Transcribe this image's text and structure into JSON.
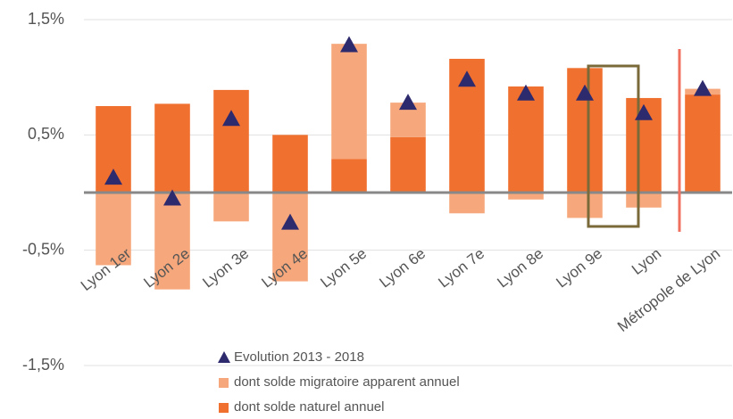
{
  "chart_data": {
    "type": "bar",
    "categories": [
      "Lyon 1er",
      "Lyon 2e",
      "Lyon 3e",
      "Lyon 4e",
      "Lyon 5e",
      "Lyon 6e",
      "Lyon 7e",
      "Lyon 8e",
      "Lyon 9e",
      "Lyon",
      "Métropole de Lyon"
    ],
    "series": [
      {
        "name": "Evolution 2013 - 2018",
        "type": "scatter",
        "color": "#2e2a6e",
        "values": [
          0.13,
          -0.05,
          0.64,
          -0.26,
          1.28,
          0.78,
          0.98,
          0.86,
          0.86,
          0.69,
          0.9
        ]
      },
      {
        "name": "dont solde migratoire apparent annuel",
        "type": "bar",
        "color": "#f6a87c",
        "values": [
          -0.63,
          -0.84,
          -0.25,
          -0.77,
          1.0,
          0.3,
          -0.18,
          -0.06,
          -0.22,
          -0.13,
          0.05
        ]
      },
      {
        "name": "dont solde naturel annuel",
        "type": "bar",
        "color": "#f07030",
        "values": [
          0.75,
          0.77,
          0.89,
          0.5,
          0.29,
          0.48,
          1.16,
          0.92,
          1.08,
          0.82,
          0.85
        ]
      }
    ],
    "ylim": [
      -1.5,
      1.5
    ],
    "yticks": [
      {
        "value": 1.5,
        "label": "1,5%"
      },
      {
        "value": 0.5,
        "label": "0,5%"
      },
      {
        "value": -0.5,
        "label": "-0,5%"
      },
      {
        "value": -1.5,
        "label": "-1,5%"
      }
    ],
    "grid": true
  }
}
